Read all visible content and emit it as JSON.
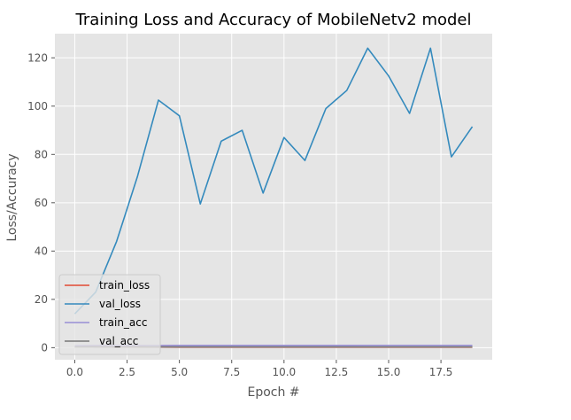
{
  "chart_data": {
    "type": "line",
    "style": "ggplot",
    "title": "Training Loss and Accuracy of MobileNetv2 model",
    "xlabel": "Epoch #",
    "ylabel": "Loss/Accuracy",
    "xlim": [
      -0.95,
      19.95
    ],
    "ylim": [
      -5,
      130
    ],
    "xticks": [
      0.0,
      2.5,
      5.0,
      7.5,
      10.0,
      12.5,
      15.0,
      17.5
    ],
    "xtick_labels": [
      "0.0",
      "2.5",
      "5.0",
      "7.5",
      "10.0",
      "12.5",
      "15.0",
      "17.5"
    ],
    "yticks": [
      0,
      20,
      40,
      60,
      80,
      100,
      120
    ],
    "ytick_labels": [
      "0",
      "20",
      "40",
      "60",
      "80",
      "100",
      "120"
    ],
    "grid": true,
    "legend_position": "lower-left",
    "x": [
      0,
      1,
      2,
      3,
      4,
      5,
      6,
      7,
      8,
      9,
      10,
      11,
      12,
      13,
      14,
      15,
      16,
      17,
      18,
      19
    ],
    "series": [
      {
        "name": "train_loss",
        "color": "#E24A33",
        "values": [
          0.7,
          0.4,
          0.3,
          0.3,
          0.25,
          0.2,
          0.2,
          0.2,
          0.2,
          0.2,
          0.2,
          0.2,
          0.2,
          0.2,
          0.2,
          0.2,
          0.2,
          0.2,
          0.2,
          0.2
        ]
      },
      {
        "name": "val_loss",
        "color": "#348ABD",
        "values": [
          14.0,
          23.0,
          44.0,
          71.0,
          102.5,
          96.0,
          59.5,
          85.5,
          90.0,
          64.0,
          87.0,
          77.5,
          99.0,
          106.5,
          124.0,
          112.5,
          97.0,
          124.0,
          79.0,
          91.5
        ]
      },
      {
        "name": "train_acc",
        "color": "#988ED5",
        "values": [
          0.8,
          0.88,
          0.9,
          0.91,
          0.92,
          0.93,
          0.93,
          0.94,
          0.94,
          0.94,
          0.95,
          0.95,
          0.95,
          0.95,
          0.96,
          0.96,
          0.96,
          0.96,
          0.96,
          0.96
        ]
      },
      {
        "name": "val_acc",
        "color": "#777777",
        "values": [
          0.3,
          0.3,
          0.3,
          0.3,
          0.3,
          0.3,
          0.3,
          0.3,
          0.3,
          0.3,
          0.3,
          0.3,
          0.3,
          0.3,
          0.3,
          0.3,
          0.3,
          0.3,
          0.3,
          0.3
        ]
      }
    ],
    "colors": {
      "plot_background": "#E5E5E5",
      "grid": "#FFFFFF",
      "text": "#555555"
    }
  }
}
